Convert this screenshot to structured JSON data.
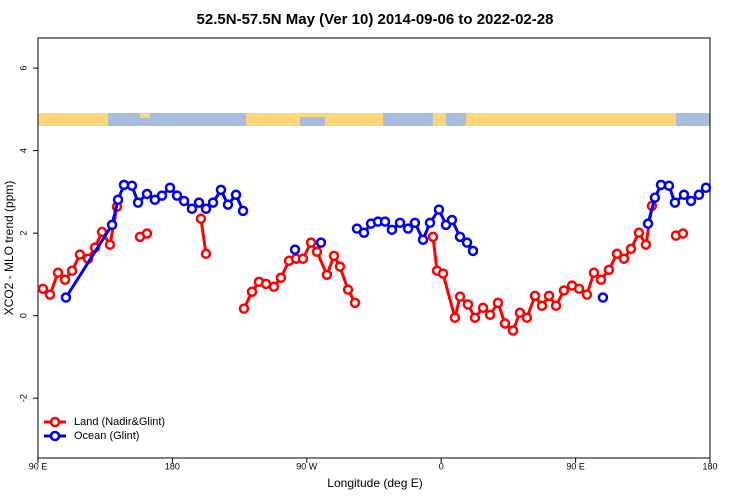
{
  "chart_data": {
    "type": "line",
    "title": "52.5N-57.5N May (Ver 10)   2014-09-06 to 2022-02-28",
    "x_label": "Longitude (deg E)",
    "y_label": "XCO2 - MLO trend (ppm)",
    "xlim": [
      90,
      540
    ],
    "ylim": [
      -3.45,
      6.73
    ],
    "xticks": [
      {
        "value": 90,
        "label": "90 E"
      },
      {
        "value": 180,
        "label": "180"
      },
      {
        "value": 270,
        "label": "90 W"
      },
      {
        "value": 360,
        "label": "0"
      },
      {
        "value": 450,
        "label": "90 E"
      },
      {
        "value": 540,
        "label": "180"
      }
    ],
    "yticks": [
      -2,
      0,
      2,
      4,
      6
    ],
    "legend": "bottom-left",
    "series": [
      {
        "name": "Land (Nadir&Glint)",
        "color": "#ff0000",
        "x": [
          93.3,
          98.0,
          103.4,
          108.1,
          112.8,
          118.1,
          123.5,
          128.2,
          132.9,
          138.2,
          142.9,
          null,
          158.3,
          163.0,
          null,
          199.1,
          202.5,
          null,
          227.9,
          233.3,
          238.0,
          242.7,
          248.0,
          252.7,
          258.1,
          262.8,
          267.4,
          272.8,
          276.8,
          283.5,
          288.2,
          292.2,
          297.6,
          302.3,
          null,
          354.5,
          357.2,
          361.2,
          369.2,
          372.6,
          377.9,
          382.6,
          388.0,
          392.7,
          398.0,
          402.7,
          408.1,
          412.7,
          417.4,
          422.8,
          427.5,
          432.2,
          436.9,
          442.2,
          447.6,
          452.3,
          457.6,
          462.3,
          467.0,
          472.3,
          477.7,
          482.4,
          487.1,
          492.4,
          497.1,
          501.1,
          null,
          517.2,
          521.9
        ],
        "values": [
          0.65,
          0.51,
          1.04,
          0.87,
          1.09,
          1.48,
          1.38,
          1.65,
          2.03,
          1.72,
          2.64,
          null,
          1.91,
          1.99,
          null,
          2.35,
          1.5,
          null,
          0.17,
          0.58,
          0.82,
          0.77,
          0.7,
          0.92,
          1.33,
          1.38,
          1.38,
          1.77,
          1.55,
          0.99,
          1.45,
          1.19,
          0.63,
          0.31,
          null,
          1.91,
          1.09,
          1.02,
          -0.05,
          0.46,
          0.27,
          -0.05,
          0.19,
          0.02,
          0.31,
          -0.19,
          -0.36,
          0.07,
          -0.05,
          0.48,
          0.24,
          0.48,
          0.24,
          0.61,
          0.73,
          0.65,
          0.51,
          1.04,
          0.87,
          1.11,
          1.5,
          1.38,
          1.62,
          2.01,
          1.72,
          2.66,
          null,
          1.94,
          1.99
        ]
      },
      {
        "name": "Ocean (Glint)",
        "color": "#0000ee",
        "x": [
          108.7,
          139.6,
          143.6,
          147.6,
          152.9,
          157.0,
          163.0,
          168.3,
          173.0,
          178.4,
          183.1,
          187.8,
          193.1,
          197.8,
          202.5,
          207.2,
          212.5,
          217.2,
          222.6,
          227.3,
          null,
          262.1,
          null,
          279.5,
          null,
          303.6,
          308.3,
          313.0,
          317.7,
          322.4,
          327.0,
          332.4,
          337.8,
          342.4,
          347.8,
          352.5,
          358.5,
          363.2,
          367.2,
          372.6,
          377.3,
          381.3,
          null,
          468.3,
          null,
          498.5,
          503.1,
          507.2,
          512.5,
          516.5,
          522.6,
          527.3,
          532.6,
          537.3
        ],
        "values": [
          0.44,
          2.2,
          2.81,
          3.17,
          3.15,
          2.74,
          2.95,
          2.81,
          2.91,
          3.1,
          2.91,
          2.78,
          2.59,
          2.74,
          2.59,
          2.74,
          3.05,
          2.69,
          2.93,
          2.54,
          null,
          1.6,
          null,
          1.77,
          null,
          2.11,
          2.01,
          2.23,
          2.28,
          2.28,
          2.08,
          2.25,
          2.11,
          2.25,
          1.84,
          2.25,
          2.57,
          2.2,
          2.32,
          1.91,
          1.77,
          1.57,
          null,
          0.44,
          null,
          2.23,
          2.86,
          3.17,
          3.15,
          2.74,
          2.93,
          2.78,
          2.93,
          3.1
        ]
      }
    ]
  }
}
